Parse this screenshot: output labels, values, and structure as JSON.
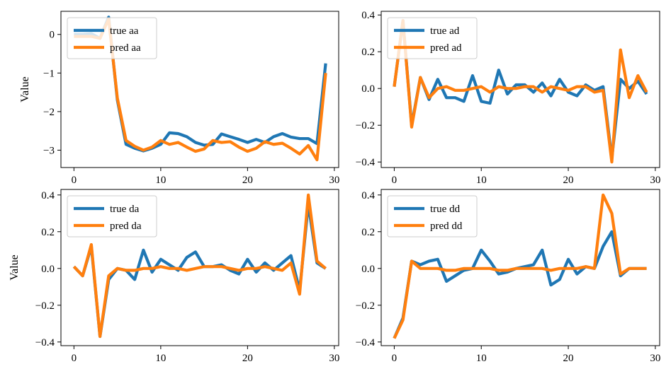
{
  "chart_data": [
    {
      "type": "line",
      "title": "",
      "xlabel": "",
      "ylabel": "Value",
      "xlim": [
        -1.5,
        30.5
      ],
      "ylim": [
        -3.45,
        0.6
      ],
      "xticks": [
        0,
        10,
        20,
        30
      ],
      "xtick_labels": [
        "0",
        "10",
        "20",
        "30"
      ],
      "yticks": [
        0,
        -1,
        -2,
        -3
      ],
      "ytick_labels": [
        "0",
        "−1",
        "−2",
        "−3"
      ],
      "legend_position": "top-left",
      "x": [
        0,
        1,
        2,
        3,
        4,
        5,
        6,
        7,
        8,
        9,
        10,
        11,
        12,
        13,
        14,
        15,
        16,
        17,
        18,
        19,
        20,
        21,
        22,
        23,
        24,
        25,
        26,
        27,
        28,
        29
      ],
      "series": [
        {
          "name": "true aa",
          "color": "#1f77b4",
          "values": [
            0.0,
            0.0,
            0.02,
            -0.1,
            0.45,
            -1.7,
            -2.85,
            -2.95,
            -3.02,
            -2.95,
            -2.85,
            -2.55,
            -2.57,
            -2.65,
            -2.8,
            -2.87,
            -2.85,
            -2.58,
            -2.65,
            -2.72,
            -2.8,
            -2.72,
            -2.8,
            -2.65,
            -2.57,
            -2.66,
            -2.7,
            -2.7,
            -2.83,
            -0.75
          ]
        },
        {
          "name": "pred aa",
          "color": "#ff7f0e",
          "values": [
            -0.05,
            -0.05,
            -0.05,
            -0.1,
            0.4,
            -1.65,
            -2.75,
            -2.9,
            -3.0,
            -2.92,
            -2.75,
            -2.85,
            -2.8,
            -2.92,
            -3.03,
            -2.97,
            -2.75,
            -2.8,
            -2.78,
            -2.92,
            -3.03,
            -2.95,
            -2.78,
            -2.85,
            -2.82,
            -2.95,
            -3.1,
            -2.88,
            -3.25,
            -1.0
          ]
        }
      ]
    },
    {
      "type": "line",
      "title": "",
      "xlabel": "",
      "ylabel": "",
      "xlim": [
        -1.5,
        30.5
      ],
      "ylim": [
        -0.43,
        0.42
      ],
      "xticks": [
        0,
        10,
        20,
        30
      ],
      "xtick_labels": [
        "0",
        "10",
        "20",
        "30"
      ],
      "yticks": [
        0.4,
        0.2,
        0.0,
        -0.2,
        -0.4
      ],
      "ytick_labels": [
        "0.4",
        "0.2",
        "0.0",
        "−0.2",
        "−0.4"
      ],
      "legend_position": "top-left",
      "x": [
        0,
        1,
        2,
        3,
        4,
        5,
        6,
        7,
        8,
        9,
        10,
        11,
        12,
        13,
        14,
        15,
        16,
        17,
        18,
        19,
        20,
        21,
        22,
        23,
        24,
        25,
        26,
        27,
        28,
        29
      ],
      "series": [
        {
          "name": "true ad",
          "color": "#1f77b4",
          "values": [
            0.01,
            0.37,
            -0.2,
            0.06,
            -0.06,
            0.05,
            -0.05,
            -0.05,
            -0.07,
            0.07,
            -0.07,
            -0.08,
            0.1,
            -0.03,
            0.02,
            0.02,
            -0.02,
            0.03,
            -0.04,
            0.05,
            -0.02,
            -0.04,
            0.02,
            -0.01,
            0.01,
            -0.38,
            0.05,
            0.0,
            0.04,
            -0.03
          ]
        },
        {
          "name": "pred ad",
          "color": "#ff7f0e",
          "values": [
            0.01,
            0.37,
            -0.21,
            0.06,
            -0.05,
            0.0,
            0.01,
            -0.01,
            -0.01,
            0.0,
            0.01,
            -0.02,
            0.01,
            0.0,
            0.0,
            0.01,
            0.01,
            -0.02,
            0.01,
            0.0,
            -0.01,
            0.01,
            0.01,
            -0.02,
            -0.01,
            -0.4,
            0.21,
            -0.05,
            0.07,
            -0.02
          ]
        }
      ]
    },
    {
      "type": "line",
      "title": "",
      "xlabel": "",
      "ylabel": "Value",
      "xlim": [
        -1.5,
        30.5
      ],
      "ylim": [
        -0.42,
        0.43
      ],
      "xticks": [
        0,
        10,
        20,
        30
      ],
      "xtick_labels": [
        "0",
        "10",
        "20",
        "30"
      ],
      "yticks": [
        0.4,
        0.2,
        0.0,
        -0.2,
        -0.4
      ],
      "ytick_labels": [
        "0.4",
        "0.2",
        "0.0",
        "−0.2",
        "−0.4"
      ],
      "legend_position": "top-left",
      "x": [
        0,
        1,
        2,
        3,
        4,
        5,
        6,
        7,
        8,
        9,
        10,
        11,
        12,
        13,
        14,
        15,
        16,
        17,
        18,
        19,
        20,
        21,
        22,
        23,
        24,
        25,
        26,
        27,
        28,
        29
      ],
      "series": [
        {
          "name": "true da",
          "color": "#1f77b4",
          "values": [
            0.01,
            -0.04,
            0.12,
            -0.37,
            -0.06,
            -0.0,
            -0.01,
            -0.06,
            0.1,
            -0.02,
            0.05,
            0.02,
            -0.01,
            0.06,
            0.09,
            0.01,
            0.01,
            0.02,
            -0.01,
            -0.03,
            0.05,
            -0.02,
            0.03,
            -0.01,
            0.03,
            0.07,
            -0.12,
            0.35,
            0.03,
            0.0
          ]
        },
        {
          "name": "pred da",
          "color": "#ff7f0e",
          "values": [
            0.01,
            -0.04,
            0.13,
            -0.37,
            -0.04,
            0.0,
            -0.01,
            -0.01,
            0.0,
            0.0,
            0.01,
            0.0,
            0.0,
            -0.01,
            0.0,
            0.01,
            0.01,
            0.01,
            0.0,
            -0.01,
            0.0,
            0.0,
            0.01,
            0.0,
            -0.01,
            0.03,
            -0.14,
            0.4,
            0.04,
            0.0
          ]
        }
      ]
    },
    {
      "type": "line",
      "title": "",
      "xlabel": "",
      "ylabel": "",
      "xlim": [
        -1.5,
        30.5
      ],
      "ylim": [
        -0.42,
        0.43
      ],
      "xticks": [
        0,
        10,
        20,
        30
      ],
      "xtick_labels": [
        "0",
        "10",
        "20",
        "30"
      ],
      "yticks": [
        0.4,
        0.2,
        0.0,
        -0.2,
        -0.4
      ],
      "ytick_labels": [
        "0.4",
        "0.2",
        "0.0",
        "−0.2",
        "−0.4"
      ],
      "legend_position": "top-left",
      "x": [
        0,
        1,
        2,
        3,
        4,
        5,
        6,
        7,
        8,
        9,
        10,
        11,
        12,
        13,
        14,
        15,
        16,
        17,
        18,
        19,
        20,
        21,
        22,
        23,
        24,
        25,
        26,
        27,
        28,
        29
      ],
      "series": [
        {
          "name": "true dd",
          "color": "#1f77b4",
          "values": [
            -0.38,
            -0.27,
            0.04,
            0.02,
            0.04,
            0.05,
            -0.07,
            -0.04,
            -0.01,
            0.0,
            0.1,
            0.04,
            -0.03,
            -0.02,
            0.0,
            0.01,
            0.02,
            0.1,
            -0.09,
            -0.06,
            0.05,
            -0.03,
            0.01,
            0.0,
            0.12,
            0.2,
            -0.04,
            0.0,
            0.0,
            0.0
          ]
        },
        {
          "name": "pred dd",
          "color": "#ff7f0e",
          "values": [
            -0.38,
            -0.28,
            0.04,
            0.0,
            0.0,
            0.0,
            -0.01,
            -0.01,
            0.0,
            0.0,
            0.0,
            0.0,
            -0.01,
            -0.01,
            0.0,
            0.0,
            0.0,
            0.0,
            -0.01,
            0.0,
            0.0,
            0.0,
            0.01,
            0.0,
            0.4,
            0.3,
            -0.03,
            0.0,
            0.0,
            0.0
          ]
        }
      ]
    }
  ]
}
